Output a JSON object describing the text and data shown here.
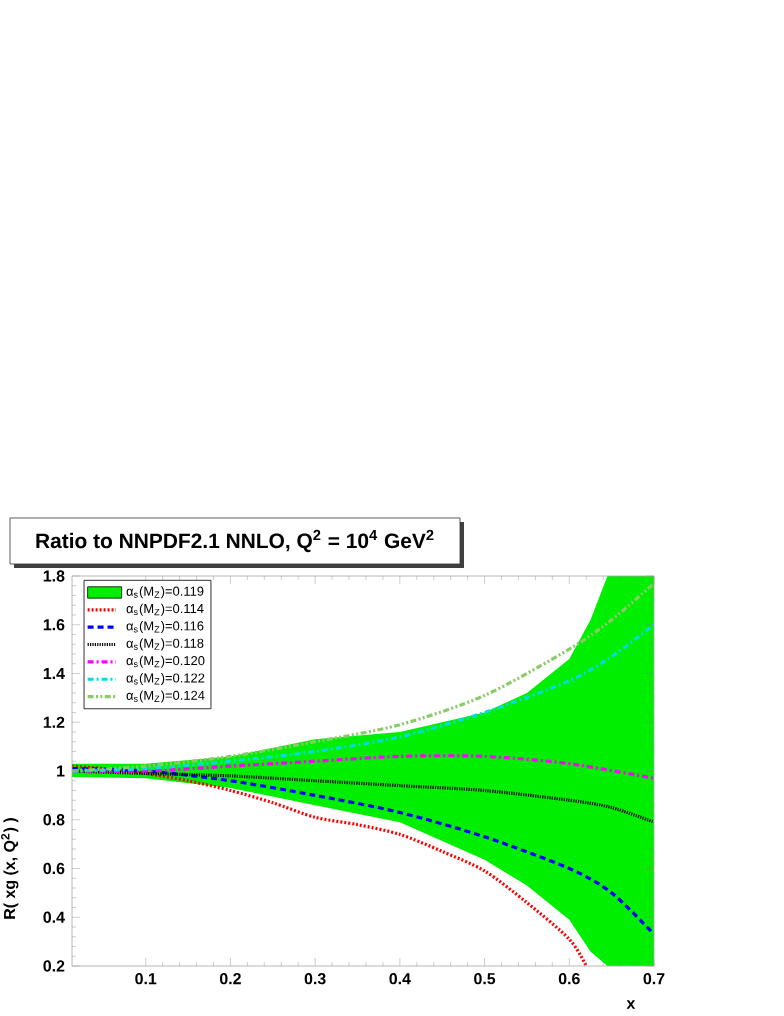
{
  "chart_data": {
    "type": "line",
    "title": "Ratio to NNPDF2.1 NNLO, Q$^{2}$ = 10$^{4}$ GeV$^{2}$",
    "xlabel": "x",
    "ylabel": "R( xg (x, Q$^{2}$) )",
    "xlim": [
      0.013,
      0.7
    ],
    "ylim": [
      0.2,
      1.8
    ],
    "xticks": [
      0.1,
      0.2,
      0.3,
      0.4,
      0.5,
      0.6,
      0.7
    ],
    "yticks": [
      0.2,
      0.4,
      0.6,
      0.8,
      1,
      1.2,
      1.4,
      1.6,
      1.8
    ],
    "legend": "top left",
    "series": [
      {
        "name": "α$_{s}$(M$_{Z}$)=0.119",
        "color": "#00ee00",
        "x": [
          0.013,
          0.1,
          0.2,
          0.3,
          0.4,
          0.5,
          0.55,
          0.6,
          0.625,
          0.645,
          0.7
        ],
        "values": [
          null,
          null,
          null,
          null,
          null,
          null,
          null,
          null,
          null,
          null,
          null
        ],
        "lower": [
          0.975,
          0.97,
          0.93,
          0.86,
          0.79,
          0.636,
          0.53,
          0.39,
          0.26,
          0.2,
          0.2
        ],
        "upper": [
          1.03,
          1.03,
          1.06,
          1.13,
          1.16,
          1.24,
          1.32,
          1.46,
          1.62,
          1.8,
          1.8
        ]
      },
      {
        "name": "α$_{s}$(M$_{Z}$)=0.114",
        "color": "#ff0000",
        "line_style": "dotted",
        "x": [
          0.013,
          0.05,
          0.1,
          0.15,
          0.2,
          0.25,
          0.3,
          0.35,
          0.4,
          0.45,
          0.5,
          0.55,
          0.6,
          0.62
        ],
        "values": [
          1.02,
          1.01,
          0.99,
          0.96,
          0.92,
          0.87,
          0.81,
          0.78,
          0.74,
          0.67,
          0.59,
          0.46,
          0.31,
          0.2
        ]
      },
      {
        "name": "α$_{s}$(M$_{Z}$)=0.116",
        "color": "#0000ff",
        "line_style": "dashed",
        "x": [
          0.013,
          0.1,
          0.2,
          0.3,
          0.4,
          0.5,
          0.6,
          0.65,
          0.7
        ],
        "values": [
          1.01,
          1.0,
          0.96,
          0.9,
          0.83,
          0.73,
          0.6,
          0.5,
          0.33
        ]
      },
      {
        "name": "α$_{s}$(M$_{Z}$)=0.118",
        "color": "#000000",
        "line_style": "densely dotted",
        "x": [
          0.013,
          0.1,
          0.2,
          0.3,
          0.4,
          0.5,
          0.6,
          0.65,
          0.7
        ],
        "values": [
          1.0,
          0.99,
          0.98,
          0.96,
          0.94,
          0.92,
          0.88,
          0.85,
          0.79
        ]
      },
      {
        "name": "α$_{s}$(M$_{Z}$)=0.120",
        "color": "#ff00ff",
        "line_style": "dashdot",
        "x": [
          0.013,
          0.1,
          0.2,
          0.3,
          0.4,
          0.5,
          0.6,
          0.7
        ],
        "values": [
          1.0,
          1.0,
          1.02,
          1.04,
          1.06,
          1.06,
          1.03,
          0.97
        ]
      },
      {
        "name": "α$_{s}$(M$_{Z}$)=0.122",
        "color": "#00dddd",
        "line_style": "dashdot",
        "x": [
          0.013,
          0.1,
          0.2,
          0.3,
          0.4,
          0.5,
          0.6,
          0.65,
          0.7
        ],
        "values": [
          1.0,
          1.01,
          1.04,
          1.08,
          1.14,
          1.24,
          1.37,
          1.47,
          1.6
        ]
      },
      {
        "name": "α$_{s}$(M$_{Z}$)=0.124",
        "color": "#88cc66",
        "line_style": "dashdotdot",
        "x": [
          0.013,
          0.1,
          0.2,
          0.3,
          0.4,
          0.5,
          0.6,
          0.65,
          0.7
        ],
        "values": [
          1.0,
          1.02,
          1.06,
          1.12,
          1.19,
          1.31,
          1.5,
          1.62,
          1.77
        ]
      }
    ]
  }
}
